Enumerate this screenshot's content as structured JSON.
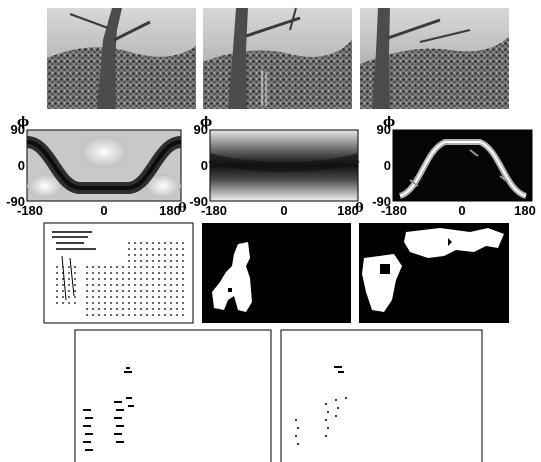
{
  "figure": {
    "panel_rows": [
      "photo-row",
      "phi-theta-plot-row",
      "segmentation-mask-row",
      "point-plot-row"
    ],
    "phi_plots": [
      {
        "id": "plot-1",
        "axis_symbol_theta": "θ",
        "axis_symbol_phi": "ϕ",
        "xticks": [
          "-180",
          "0",
          "180"
        ],
        "yticks": [
          "90",
          "0",
          "-90"
        ],
        "style": "gray-dark-curve"
      },
      {
        "id": "plot-2",
        "axis_symbol_theta": "θ",
        "axis_symbol_phi": "ϕ",
        "xticks": [
          "-180",
          "0",
          "180"
        ],
        "yticks": [
          "90",
          "0",
          "-90"
        ],
        "style": "dark-horizontal-band"
      },
      {
        "id": "plot-3",
        "axis_symbol_theta": "θ",
        "axis_symbol_phi": "ϕ",
        "xticks": [
          "-180",
          "0",
          "180"
        ],
        "yticks": [
          "90",
          "0",
          "-90"
        ],
        "style": "bright-curve-on-black"
      }
    ],
    "colors": {
      "ink": "#000000",
      "paper": "#ffffff",
      "gray": "#9a9a9a"
    }
  }
}
